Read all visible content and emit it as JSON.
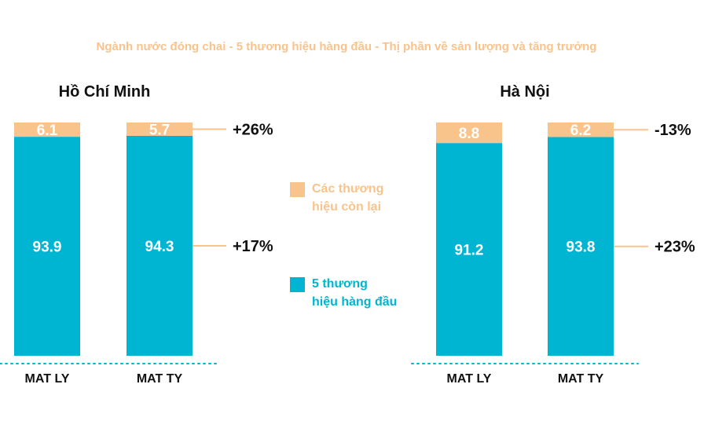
{
  "title": "Ngành nước đóng chai - 5 thương hiệu hàng đầu - Thị phần về sản lượng và tăng trưởng",
  "colors": {
    "top5": "#00b5d1",
    "others": "#f9c38c",
    "title": "#f9c38c",
    "axis": "#00b5d1",
    "connector": "#f9c38c"
  },
  "legend": {
    "items": [
      {
        "lines": [
          "Các thương",
          "hiệu còn lại"
        ],
        "color": "#f9c38c",
        "icon": "square"
      },
      {
        "lines": [
          "5 thương",
          "hiệu hàng đầu"
        ],
        "color": "#00b5d1",
        "icon": "square"
      }
    ]
  },
  "chart_data": [
    {
      "type": "bar",
      "stacked": true,
      "title": "Hồ Chí Minh",
      "categories": [
        "MAT LY",
        "MAT TY"
      ],
      "series": [
        {
          "name": "5 thương hiệu hàng đầu",
          "values": [
            93.9,
            94.3
          ],
          "labels": [
            "93.9",
            "94.3"
          ]
        },
        {
          "name": "Các thương hiệu còn lại",
          "values": [
            6.1,
            5.7
          ],
          "labels": [
            "6.1",
            "5.7"
          ]
        }
      ],
      "growth": {
        "top": "+26%",
        "bottom": "+17%"
      },
      "ylim": [
        0,
        100
      ]
    },
    {
      "type": "bar",
      "stacked": true,
      "title": "Hà Nội",
      "categories": [
        "MAT LY",
        "MAT TY"
      ],
      "series": [
        {
          "name": "5 thương hiệu hàng đầu",
          "values": [
            91.2,
            93.8
          ],
          "labels": [
            "91.2",
            "93.8"
          ]
        },
        {
          "name": "Các thương hiệu còn lại",
          "values": [
            8.8,
            6.2
          ],
          "labels": [
            "8.8",
            "6.2"
          ]
        }
      ],
      "growth": {
        "top": "-13%",
        "bottom": "+23%"
      },
      "ylim": [
        0,
        100
      ]
    }
  ]
}
